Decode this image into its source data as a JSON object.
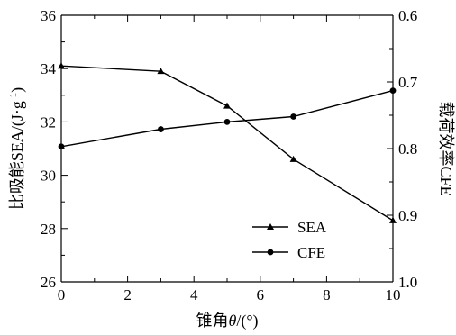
{
  "chart_data": {
    "type": "line",
    "x": [
      0,
      3,
      5,
      7,
      10
    ],
    "xlabel_prefix": "锥角",
    "xlabel_symbol": "θ",
    "xlabel_suffix": "/(°)",
    "xlim": [
      0,
      10
    ],
    "xticks": [
      "0",
      "2",
      "4",
      "6",
      "8",
      "10"
    ],
    "ylabel_left_main": "比吸能SEA/(J·g",
    "ylabel_left_sup": "-1",
    "ylabel_left_close": ")",
    "ylim_left": [
      26,
      36
    ],
    "yticks_left": [
      "26",
      "28",
      "30",
      "32",
      "34",
      "36"
    ],
    "ylabel_right": "载荷效率CFE",
    "ylim_right": [
      1.0,
      0.6
    ],
    "right_axis_inverted": true,
    "yticks_right": [
      "1.0",
      "0.9",
      "0.8",
      "0.7",
      "0.6"
    ],
    "legend_position": "lower-right",
    "series": [
      {
        "name": "SEA",
        "axis": "left",
        "marker": "triangle",
        "values": [
          34.1,
          33.9,
          32.6,
          30.6,
          28.3
        ]
      },
      {
        "name": "CFE",
        "axis": "right",
        "marker": "circle",
        "values": [
          0.797,
          0.771,
          0.76,
          0.752,
          0.713
        ]
      }
    ]
  }
}
